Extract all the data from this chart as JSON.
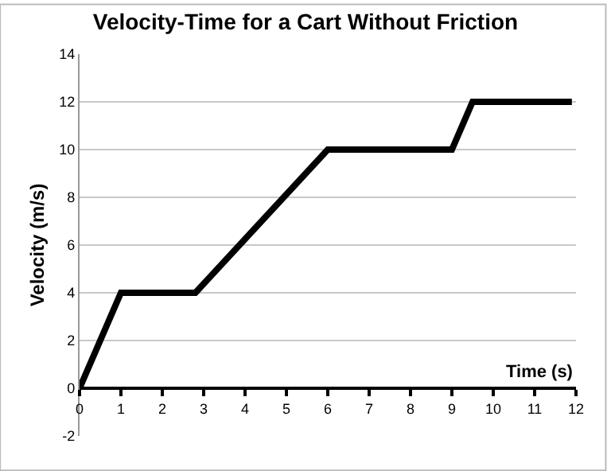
{
  "chart_data": {
    "type": "line",
    "title": "Velocity-Time for a Cart Without Friction",
    "xlabel": "Time (s)",
    "ylabel": "Velocity (m/s)",
    "x": [
      0,
      1,
      2.8,
      6,
      9,
      9.5,
      11.9
    ],
    "series": [
      {
        "color": "#000000",
        "values": [
          0,
          4,
          4,
          10,
          10,
          12,
          12
        ]
      }
    ],
    "xlim": [
      0,
      12
    ],
    "xticks": [
      0,
      1,
      2,
      3,
      4,
      5,
      6,
      7,
      8,
      9,
      10,
      11,
      12
    ],
    "ylim": [
      -2,
      14
    ],
    "yticks": [
      -2,
      0,
      2,
      4,
      6,
      8,
      10,
      12,
      14
    ],
    "grid": "y",
    "marker": "none",
    "line_style": "solid"
  }
}
